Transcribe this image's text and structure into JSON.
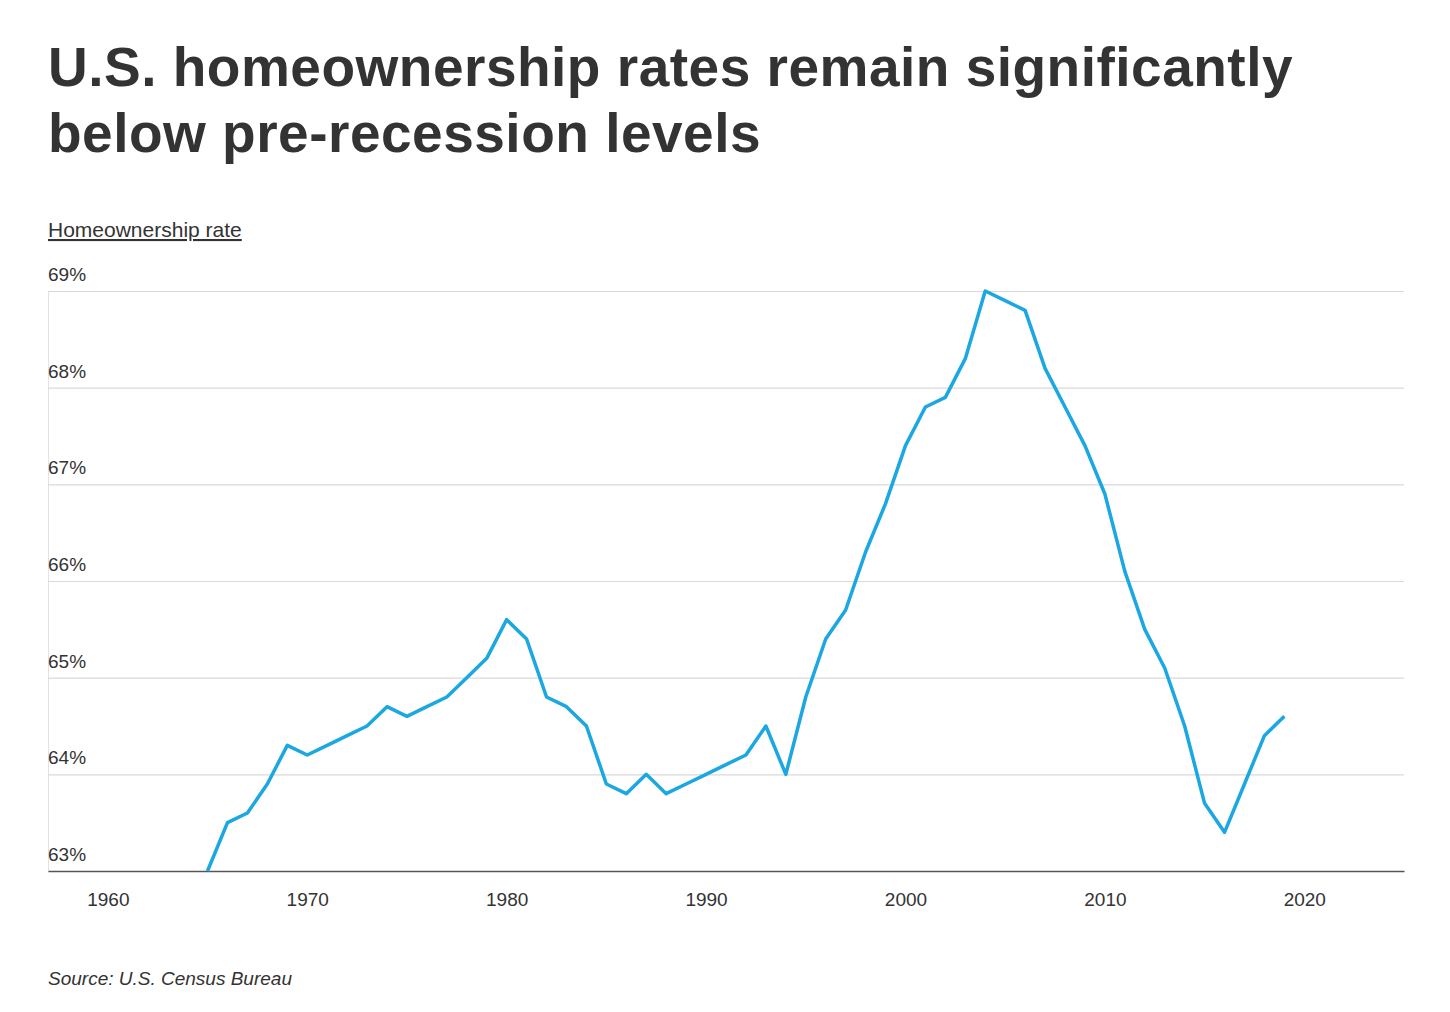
{
  "chart_data": {
    "type": "line",
    "title": "U.S. homeownership rates remain significantly below pre-recession levels",
    "y_label": "Homeownership rate",
    "source": "Source: U.S. Census Bureau",
    "color": "#1aa7e2",
    "grid": true,
    "x": [
      1965,
      1966,
      1967,
      1968,
      1969,
      1970,
      1971,
      1972,
      1973,
      1974,
      1975,
      1976,
      1977,
      1978,
      1979,
      1980,
      1981,
      1982,
      1983,
      1984,
      1985,
      1986,
      1987,
      1988,
      1989,
      1990,
      1991,
      1992,
      1993,
      1994,
      1995,
      1996,
      1997,
      1998,
      1999,
      2000,
      2001,
      2002,
      2003,
      2004,
      2005,
      2006,
      2007,
      2008,
      2009,
      2010,
      2011,
      2012,
      2013,
      2014,
      2015,
      2016,
      2017,
      2018,
      2019
    ],
    "values": [
      63.0,
      63.5,
      63.6,
      63.9,
      64.3,
      64.2,
      64.3,
      64.4,
      64.5,
      64.7,
      64.6,
      64.7,
      64.8,
      65.0,
      65.2,
      65.6,
      65.4,
      64.8,
      64.7,
      64.5,
      63.9,
      63.8,
      64.0,
      63.8,
      63.9,
      64.0,
      64.1,
      64.2,
      64.5,
      64.0,
      64.8,
      65.4,
      65.7,
      66.3,
      66.8,
      67.4,
      67.8,
      67.9,
      68.3,
      69.0,
      68.9,
      68.8,
      68.2,
      67.8,
      67.4,
      66.9,
      66.1,
      65.5,
      65.1,
      64.5,
      63.7,
      63.4,
      63.9,
      64.4,
      64.6
    ],
    "xlim": [
      1957,
      2025
    ],
    "xticks": [
      1960,
      1970,
      1980,
      1990,
      2000,
      2010,
      2020
    ],
    "ylim": [
      63,
      69
    ],
    "yticks": [
      {
        "value": 63,
        "label": "63%"
      },
      {
        "value": 64,
        "label": "64%"
      },
      {
        "value": 65,
        "label": "65%"
      },
      {
        "value": 66,
        "label": "66%"
      },
      {
        "value": 67,
        "label": "67%"
      },
      {
        "value": 68,
        "label": "68%"
      },
      {
        "value": 69,
        "label": "69%"
      }
    ]
  }
}
